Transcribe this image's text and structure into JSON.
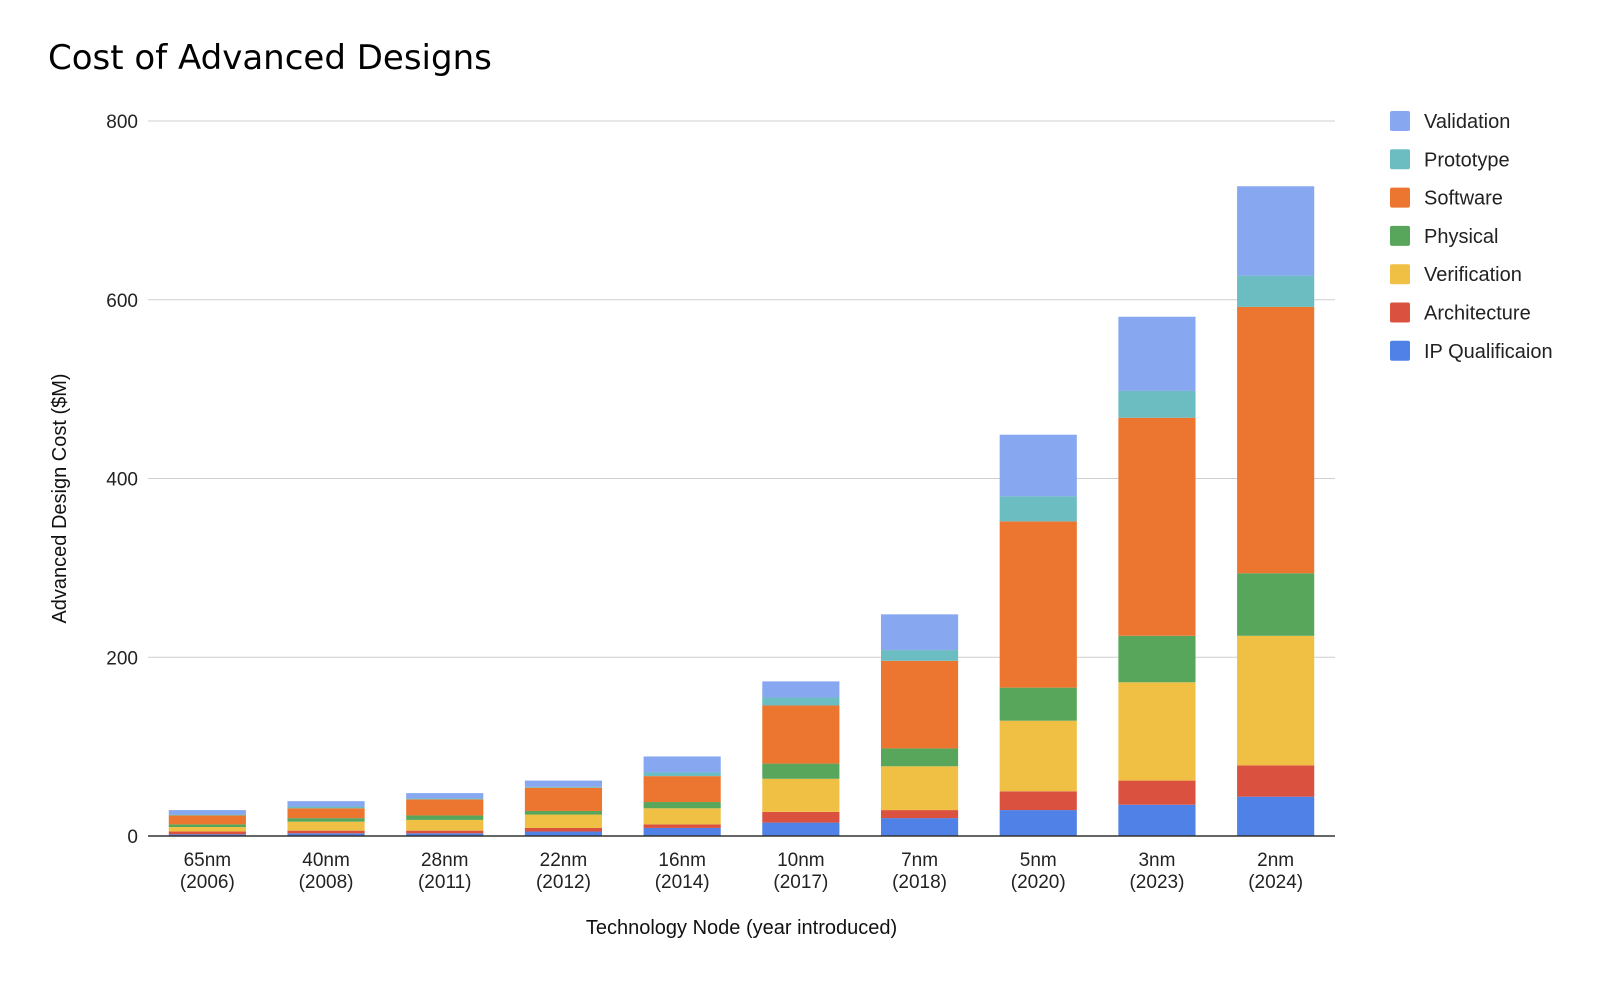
{
  "chart_data": {
    "type": "bar",
    "stacked": true,
    "title": "Cost of Advanced Designs",
    "xlabel": "Technology Node (year introduced)",
    "ylabel": "Advanced Design Cost ($M)",
    "ylim": [
      0,
      800
    ],
    "yticks": [
      0,
      200,
      400,
      600,
      800
    ],
    "grid": true,
    "legend_position": "right",
    "categories": [
      [
        "65nm",
        "(2006)"
      ],
      [
        "40nm",
        "(2008)"
      ],
      [
        "28nm",
        "(2011)"
      ],
      [
        "22nm",
        "(2012)"
      ],
      [
        "16nm",
        "(2014)"
      ],
      [
        "10nm",
        "(2017)"
      ],
      [
        "7nm",
        "(2018)"
      ],
      [
        "5nm",
        "(2020)"
      ],
      [
        "3nm",
        "(2023)"
      ],
      [
        "2nm",
        "(2024)"
      ]
    ],
    "series": [
      {
        "name": "IP Qualificaion",
        "color": "#4f81e6",
        "values": [
          2,
          3,
          3,
          5,
          9,
          15,
          20,
          29,
          35,
          44
        ]
      },
      {
        "name": "Architecture",
        "color": "#db5140",
        "values": [
          3,
          3,
          3,
          4,
          4,
          12,
          9,
          21,
          27,
          35
        ]
      },
      {
        "name": "Verification",
        "color": "#f0c044",
        "values": [
          5,
          10,
          12,
          15,
          18,
          37,
          49,
          79,
          110,
          145
        ]
      },
      {
        "name": "Physical",
        "color": "#58a65c",
        "values": [
          3,
          4,
          5,
          4,
          7,
          17,
          20,
          37,
          52,
          70
        ]
      },
      {
        "name": "Software",
        "color": "#ec7630",
        "values": [
          10,
          11,
          18,
          26,
          29,
          65,
          98,
          186,
          244,
          298
        ]
      },
      {
        "name": "Prototype",
        "color": "#6bbdc2",
        "values": [
          1,
          2,
          1,
          1,
          4,
          9,
          12,
          28,
          30,
          35
        ]
      },
      {
        "name": "Validation",
        "color": "#87a8f0",
        "values": [
          5,
          6,
          6,
          7,
          18,
          18,
          40,
          69,
          83,
          100
        ]
      }
    ],
    "legend_order": [
      "Validation",
      "Prototype",
      "Software",
      "Physical",
      "Verification",
      "Architecture",
      "IP Qualificaion"
    ]
  }
}
